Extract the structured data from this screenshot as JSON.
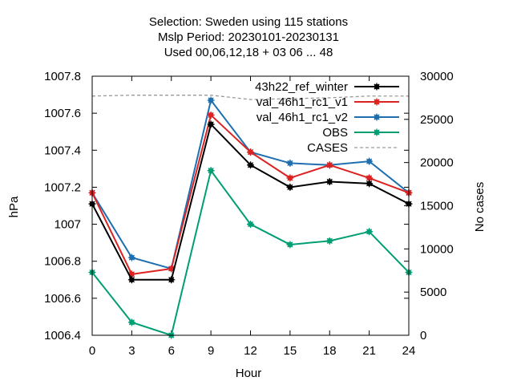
{
  "chart_data": {
    "type": "line",
    "title": [
      "Selection: Sweden using   115 stations",
      "Mslp   Period: 20230101-20230131",
      "Used  00,06,12,18 + 03 06 ... 48"
    ],
    "xlabel": "Hour",
    "ylabel": "hPa",
    "y2label": "No cases",
    "x": [
      0,
      3,
      6,
      9,
      12,
      15,
      18,
      21,
      24
    ],
    "xticks": [
      0,
      3,
      6,
      9,
      12,
      15,
      18,
      21,
      24
    ],
    "xlim": [
      0,
      24
    ],
    "ylim": [
      1006.4,
      1007.8
    ],
    "yticks": [
      1006.4,
      1006.6,
      1006.8,
      1007,
      1007.2,
      1007.4,
      1007.6,
      1007.8
    ],
    "y2lim": [
      0,
      30000
    ],
    "y2ticks": [
      0,
      5000,
      10000,
      15000,
      20000,
      25000,
      30000
    ],
    "legend_position": "top-right",
    "series": [
      {
        "name": "43h22_ref_winter",
        "color": "#000000",
        "marker": "filled-circle-star",
        "axis": "y",
        "values": [
          1007.11,
          1006.7,
          1006.7,
          1007.54,
          1007.32,
          1007.2,
          1007.23,
          1007.22,
          1007.11
        ]
      },
      {
        "name": "val_46h1_rc1_v1",
        "color": "#dd2222",
        "marker": "filled-circle-star",
        "axis": "y",
        "values": [
          1007.17,
          1006.73,
          1006.76,
          1007.59,
          1007.39,
          1007.25,
          1007.32,
          1007.25,
          1007.17
        ]
      },
      {
        "name": "val_46h1_rc1_v2",
        "color": "#1f6fb0",
        "marker": "filled-circle-star",
        "axis": "y",
        "values": [
          1007.17,
          1006.82,
          1006.76,
          1007.67,
          1007.39,
          1007.33,
          1007.32,
          1007.34,
          1007.17
        ]
      },
      {
        "name": "OBS",
        "color": "#009e73",
        "marker": "filled-circle-star",
        "axis": "y",
        "values": [
          1006.74,
          1006.47,
          1006.4,
          1007.29,
          1007.0,
          1006.89,
          1006.91,
          1006.96,
          1006.74
        ]
      },
      {
        "name": "CASES",
        "color": "#999999",
        "dash": true,
        "axis": "y2",
        "values": [
          27700,
          27800,
          27800,
          27800,
          27300,
          27400,
          27500,
          27700,
          27700
        ]
      }
    ],
    "grid": false
  }
}
